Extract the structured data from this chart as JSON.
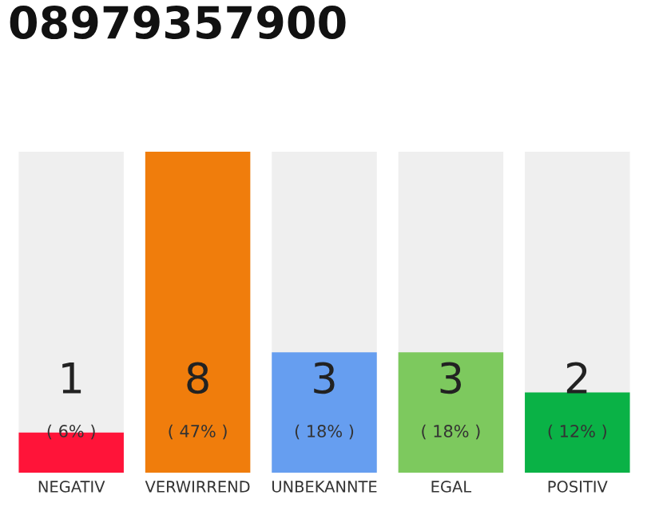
{
  "chart_data": {
    "type": "bar",
    "title": "08979357900",
    "categories": [
      "NEGATIV",
      "VERWIRREND",
      "UNBEKANNTE",
      "EGAL",
      "POSITIV"
    ],
    "values": [
      1,
      8,
      3,
      3,
      2
    ],
    "colors": [
      "#ff1439",
      "#f07d0c",
      "#669ef0",
      "#7dc95e",
      "#0ab246"
    ],
    "data_labels": true,
    "annotations": [
      "( 6% )",
      "( 47% )",
      "( 18% )",
      "( 18% )",
      "( 12% )"
    ],
    "tick_labels": "x",
    "grid": false,
    "legend": false
  }
}
